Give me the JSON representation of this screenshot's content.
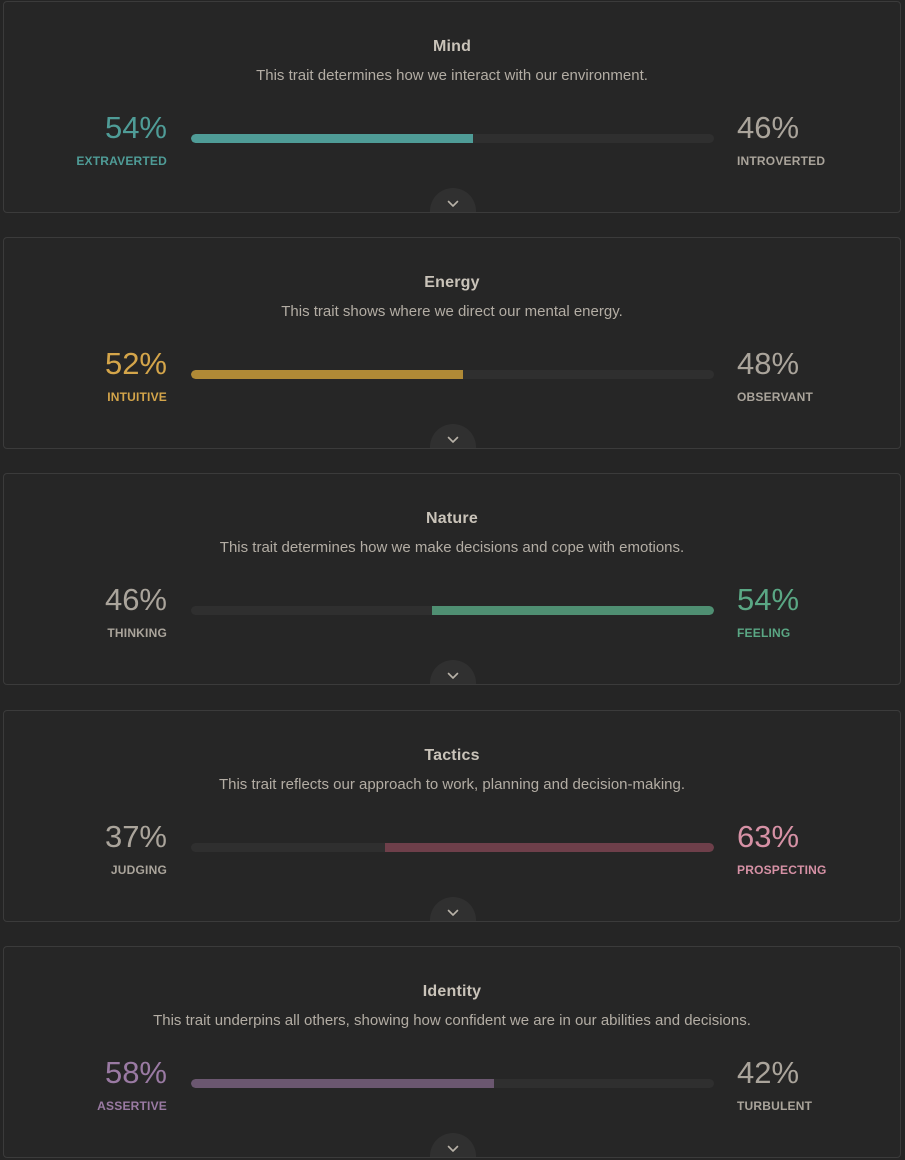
{
  "traits": [
    {
      "title": "Mind",
      "description": "This trait determines how we interact with our environment.",
      "left": {
        "percent": "54%",
        "label": "EXTRAVERTED"
      },
      "right": {
        "percent": "46%",
        "label": "INTROVERTED"
      },
      "dominant": "left",
      "fill_fraction": 0.54,
      "color": "#4f9c97",
      "icon": "chevron-down-icon"
    },
    {
      "title": "Energy",
      "description": "This trait shows where we direct our mental energy.",
      "left": {
        "percent": "52%",
        "label": "INTUITIVE"
      },
      "right": {
        "percent": "48%",
        "label": "OBSERVANT"
      },
      "dominant": "left",
      "fill_fraction": 0.52,
      "color": "#d4a54a",
      "icon": "chevron-down-icon"
    },
    {
      "title": "Nature",
      "description": "This trait determines how we make decisions and cope with emotions.",
      "left": {
        "percent": "46%",
        "label": "THINKING"
      },
      "right": {
        "percent": "54%",
        "label": "FEELING"
      },
      "dominant": "right",
      "fill_fraction": 0.54,
      "color": "#5aa784",
      "icon": "chevron-down-icon"
    },
    {
      "title": "Tactics",
      "description": "This trait reflects our approach to work, planning and decision-making.",
      "left": {
        "percent": "37%",
        "label": "JUDGING"
      },
      "right": {
        "percent": "63%",
        "label": "PROSPECTING"
      },
      "dominant": "right",
      "fill_fraction": 0.63,
      "color": "#d691a5",
      "icon": "chevron-down-icon"
    },
    {
      "title": "Identity",
      "description": "This trait underpins all others, showing how confident we are in our abilities and decisions.",
      "left": {
        "percent": "58%",
        "label": "ASSERTIVE"
      },
      "right": {
        "percent": "42%",
        "label": "TURBULENT"
      },
      "dominant": "left",
      "fill_fraction": 0.58,
      "color": "#9a7aa3",
      "icon": "chevron-down-icon"
    }
  ],
  "bar_colors": [
    "#4f9c97",
    "#b08a36",
    "#4f8f72",
    "#6e3f4a",
    "#6b5770"
  ]
}
